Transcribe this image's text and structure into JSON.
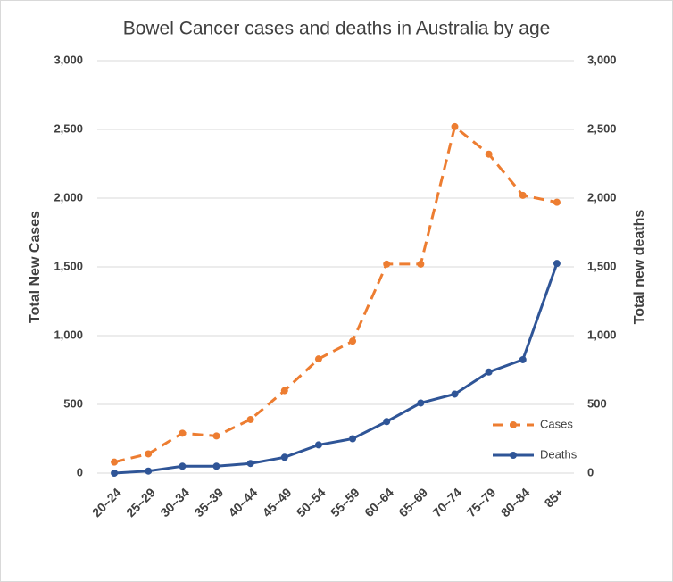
{
  "chart_data": {
    "type": "line",
    "title": "Bowel Cancer cases and deaths in Australia by age",
    "categories": [
      "20–24",
      "25–29",
      "30–34",
      "35–39",
      "40–44",
      "45–49",
      "50–54",
      "55–59",
      "60–64",
      "65–69",
      "70–74",
      "75–79",
      "80–84",
      "85+"
    ],
    "y_label": "Total New Cases",
    "y2_label": "Total new deaths",
    "ylim": [
      0,
      3000
    ],
    "y2lim": [
      0,
      3000
    ],
    "yticks": [
      0,
      500,
      {
        "value": 1000,
        "label": "1,000"
      },
      {
        "value": 1500,
        "label": "1,500"
      },
      {
        "value": 2000,
        "label": "2,000"
      },
      {
        "value": 2500,
        "label": "2,500"
      },
      {
        "value": 3000,
        "label": "3,000"
      }
    ],
    "y2ticks": [
      0,
      500,
      {
        "value": 1000,
        "label": "1,000"
      },
      {
        "value": 1500,
        "label": "1,500"
      },
      {
        "value": 2000,
        "label": "2,000"
      },
      {
        "value": 2500,
        "label": "2,500"
      },
      {
        "value": 3000,
        "label": "3,000"
      }
    ],
    "grid": true,
    "legend": "lower right",
    "series": [
      {
        "name": "Cases",
        "color": "#ed7d31",
        "dashed": true,
        "values": [
          80,
          140,
          290,
          270,
          390,
          600,
          830,
          960,
          1520,
          1520,
          2520,
          2320,
          2020,
          1970
        ]
      },
      {
        "name": "Deaths",
        "color": "#2f5597",
        "dashed": false,
        "axis": "y2",
        "values": [
          0,
          15,
          50,
          50,
          70,
          115,
          205,
          250,
          375,
          510,
          575,
          735,
          825,
          1525
        ]
      }
    ]
  }
}
